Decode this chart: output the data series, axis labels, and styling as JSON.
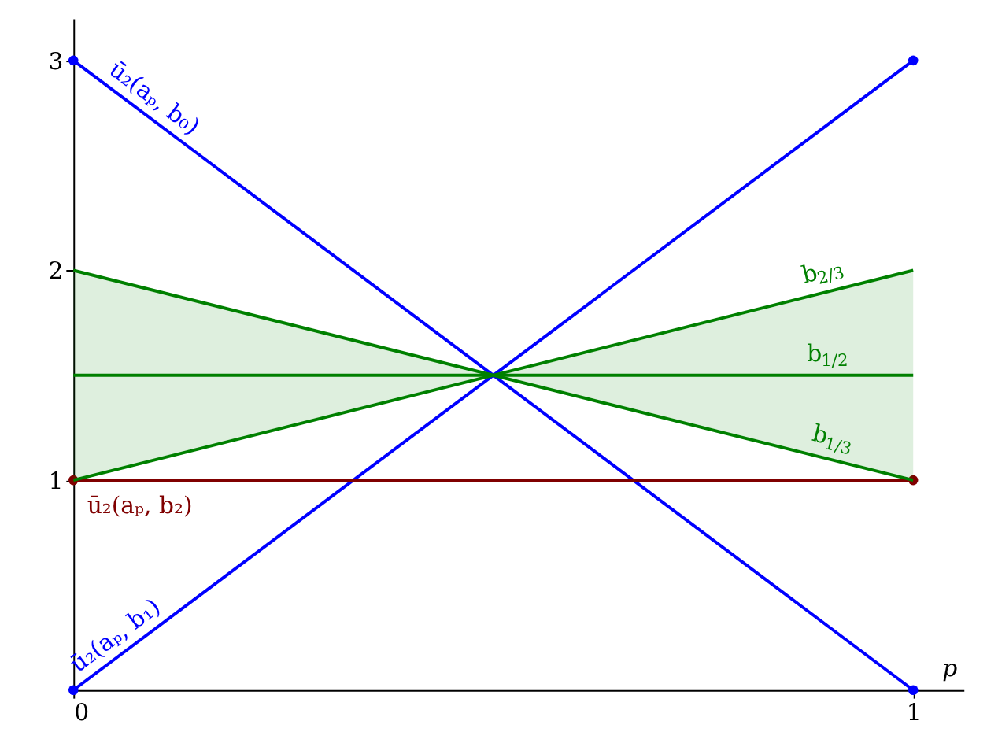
{
  "chart_data": {
    "type": "line",
    "xlabel": "p",
    "xlim": [
      0,
      1.06
    ],
    "ylim": [
      0,
      3.2
    ],
    "xticks": [
      0,
      1
    ],
    "yticks": [
      1,
      2,
      3
    ],
    "grid": false,
    "series": [
      {
        "name": "ū₂(aₚ, b₀)",
        "color": "#0000ff",
        "x": [
          0,
          1
        ],
        "values": [
          3,
          0
        ],
        "marker": "circle"
      },
      {
        "name": "ū₂(aₚ, b₁)",
        "color": "#0000ff",
        "x": [
          0,
          1
        ],
        "values": [
          0,
          3
        ],
        "marker": "circle"
      },
      {
        "name": "ū₂(aₚ, b₂)",
        "color": "#800000",
        "x": [
          0,
          1
        ],
        "values": [
          1,
          1
        ],
        "marker": "circle"
      },
      {
        "name": "b$_{1/3}$",
        "color": "#008000",
        "x": [
          0,
          1
        ],
        "values": [
          2,
          1
        ],
        "marker": "none"
      },
      {
        "name": "b$_{1/2}$",
        "color": "#008000",
        "x": [
          0,
          0.5,
          1
        ],
        "values": [
          1.5,
          1.5,
          1.5
        ],
        "lower": [
          1,
          1.5,
          1
        ],
        "upper": [
          2,
          1.5,
          2
        ],
        "marker": "none"
      },
      {
        "name": "b$_{2/3}$",
        "color": "#008000",
        "x": [
          0,
          1
        ],
        "values": [
          1,
          2
        ],
        "marker": "none"
      }
    ]
  }
}
